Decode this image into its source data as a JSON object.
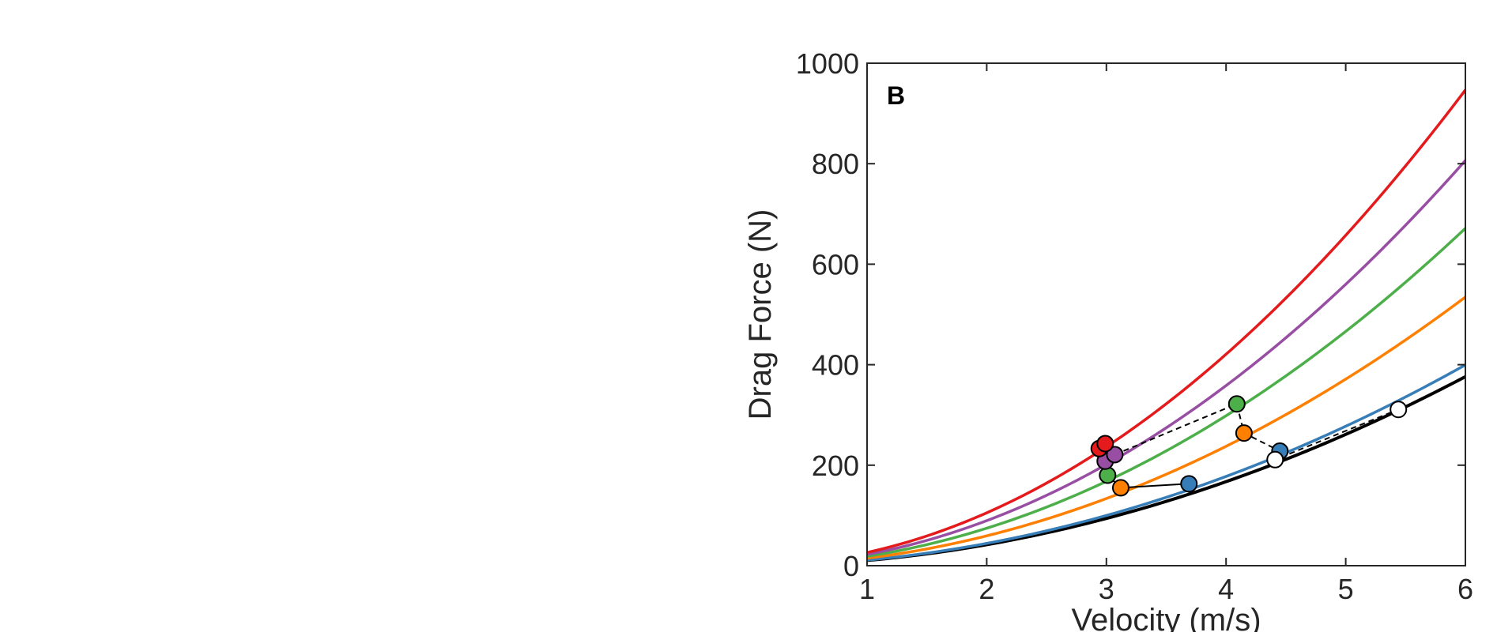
{
  "chart_data": {
    "type": "line",
    "panel_label": "B",
    "xlabel": "Velocity (m/s)",
    "ylabel": "Drag Force (N)",
    "xlim": [
      1,
      6
    ],
    "ylim": [
      0,
      1000
    ],
    "xticks": [
      "1",
      "2",
      "3",
      "4",
      "5",
      "6"
    ],
    "yticks": [
      "0",
      "200",
      "400",
      "600",
      "800",
      "1000"
    ],
    "xtick_values": [
      1,
      2,
      3,
      4,
      5,
      6
    ],
    "ytick_values": [
      0,
      200,
      400,
      600,
      800,
      1000
    ],
    "grid": false,
    "box": true,
    "series": [
      {
        "key": "black",
        "color": "#000000",
        "coef": 10.45,
        "x": [
          1,
          6
        ],
        "marker": "open"
      },
      {
        "key": "blue",
        "color": "#377eb8",
        "coef": 11.1,
        "x": [
          1,
          6
        ]
      },
      {
        "key": "orange",
        "color": "#ff7f00",
        "coef": 14.85,
        "x": [
          1,
          6
        ]
      },
      {
        "key": "green",
        "color": "#4daf4a",
        "coef": 18.65,
        "x": [
          1,
          6
        ]
      },
      {
        "key": "purple",
        "color": "#984ea3",
        "coef": 22.4,
        "x": [
          1,
          6
        ]
      },
      {
        "key": "red",
        "color": "#e41a1c",
        "coef": 26.3,
        "x": [
          1,
          6
        ]
      }
    ],
    "points_solid_path": [
      {
        "x": 3.01,
        "y": 180,
        "color": "#4daf4a"
      },
      {
        "x": 3.12,
        "y": 155,
        "color": "#ff7f00"
      },
      {
        "x": 3.69,
        "y": 163,
        "color": "#377eb8"
      }
    ],
    "points_dashed_path": [
      {
        "x": 2.99,
        "y": 208,
        "color": "#984ea3"
      },
      {
        "x": 3.07,
        "y": 221,
        "color": "#984ea3"
      },
      {
        "x": 2.94,
        "y": 233,
        "color": "#e41a1c"
      },
      {
        "x": 2.99,
        "y": 243,
        "color": "#e41a1c"
      },
      {
        "x": 4.09,
        "y": 322,
        "color": "#4daf4a"
      },
      {
        "x": 4.15,
        "y": 264,
        "color": "#ff7f00"
      },
      {
        "x": 4.45,
        "y": 228,
        "color": "#377eb8"
      },
      {
        "x": 4.41,
        "y": 211,
        "color": "#ffffff"
      },
      {
        "x": 5.44,
        "y": 311,
        "color": "#ffffff"
      }
    ],
    "solid_connector": [
      [
        3.0,
        234
      ],
      [
        3.01,
        180
      ],
      [
        3.12,
        155
      ],
      [
        3.69,
        163
      ]
    ],
    "dashed_connector": [
      [
        3.07,
        221
      ],
      [
        4.09,
        322
      ],
      [
        4.15,
        264
      ],
      [
        4.45,
        228
      ],
      [
        4.41,
        211
      ],
      [
        5.44,
        311
      ]
    ]
  }
}
